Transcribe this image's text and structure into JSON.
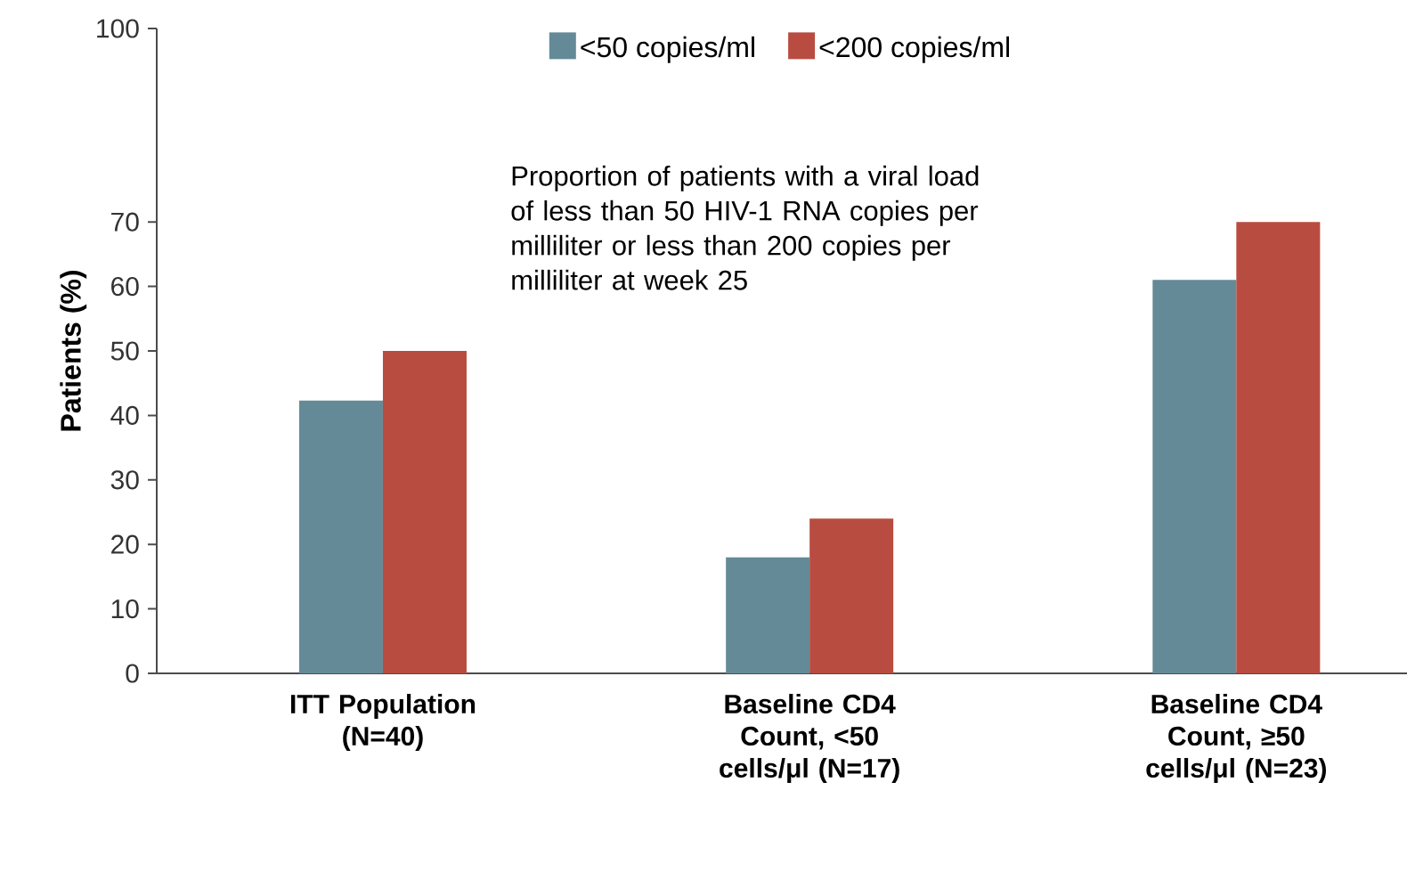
{
  "chart_data": {
    "type": "bar",
    "ylabel": "Patients (%)",
    "categories": [
      "ITT Population (N=40)",
      "Baseline CD4 Count, <50 cells/μl (N=17)",
      "Baseline CD4 Count, ≥50 cells/μl (N=23)"
    ],
    "series": [
      {
        "name": "<50 copies/ml",
        "color": "#648a98",
        "values": [
          42.3,
          18,
          61
        ]
      },
      {
        "name": "<200 copies/ml",
        "color": "#b84c40",
        "values": [
          50,
          24,
          70
        ]
      }
    ],
    "ylim": [
      0,
      100
    ],
    "yticks": [
      0,
      10,
      20,
      30,
      40,
      50,
      60,
      70,
      100
    ],
    "legend": "top",
    "grid": false,
    "annotations": [
      "Proportion of patients with a viral load of less than 50 HIV-1 RNA copies per milliliter or less than 200 copies per milliliter at week 25"
    ]
  }
}
